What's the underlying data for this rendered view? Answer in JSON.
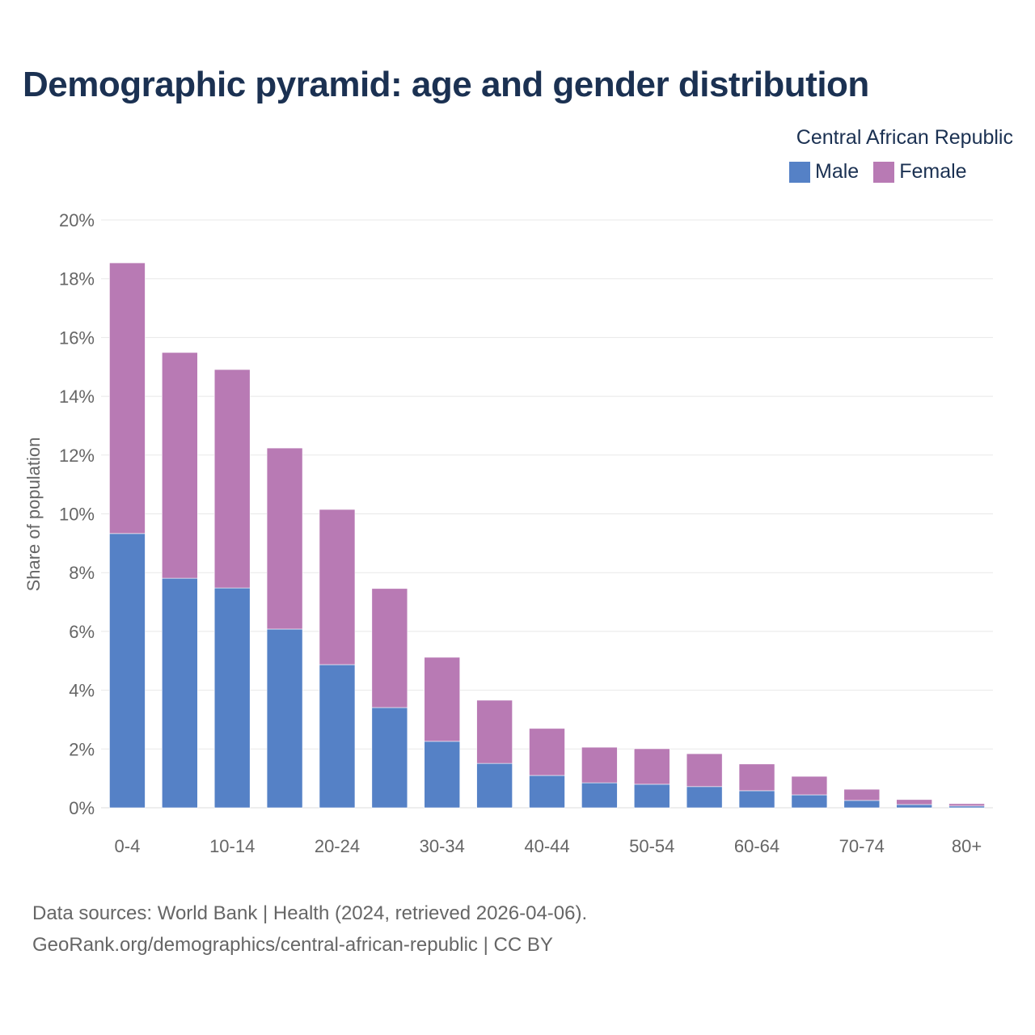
{
  "title": "Demographic pyramid: age and gender distribution",
  "country": "Central African Republic",
  "footer": {
    "line1": "Data sources: World Bank | Health (2024, retrieved 2026-04-06).",
    "line2": "GeoRank.org/demographics/central-african-republic | CC BY"
  },
  "chart_data": {
    "type": "bar",
    "stacked": true,
    "title": "Demographic pyramid: age and gender distribution",
    "subtitle": "Central African Republic",
    "xlabel": "",
    "ylabel": "Share of population",
    "ylim": [
      0,
      20
    ],
    "yticks": [
      0,
      2,
      4,
      6,
      8,
      10,
      12,
      14,
      16,
      18,
      20
    ],
    "ytick_labels": [
      "0%",
      "2%",
      "4%",
      "6%",
      "8%",
      "10%",
      "12%",
      "14%",
      "16%",
      "18%",
      "20%"
    ],
    "categories": [
      "0-4",
      "5-9",
      "10-14",
      "15-19",
      "20-24",
      "25-29",
      "30-34",
      "35-39",
      "40-44",
      "45-49",
      "50-54",
      "55-59",
      "60-64",
      "65-69",
      "70-74",
      "75-79",
      "80+"
    ],
    "xtick_labels_shown": [
      "0-4",
      "10-14",
      "20-24",
      "30-34",
      "40-44",
      "50-54",
      "60-64",
      "70-74",
      "80+"
    ],
    "legend_position": "top-right",
    "grid": true,
    "series": [
      {
        "name": "Male",
        "color": "#5581c6",
        "values": [
          9.33,
          7.81,
          7.48,
          6.08,
          4.87,
          3.41,
          2.26,
          1.51,
          1.1,
          0.85,
          0.8,
          0.72,
          0.58,
          0.44,
          0.25,
          0.11,
          0.06
        ]
      },
      {
        "name": "Female",
        "color": "#b87ab4",
        "values": [
          9.21,
          7.68,
          7.43,
          6.16,
          5.28,
          4.05,
          2.86,
          2.15,
          1.6,
          1.21,
          1.21,
          1.12,
          0.91,
          0.63,
          0.38,
          0.17,
          0.08
        ]
      }
    ]
  }
}
